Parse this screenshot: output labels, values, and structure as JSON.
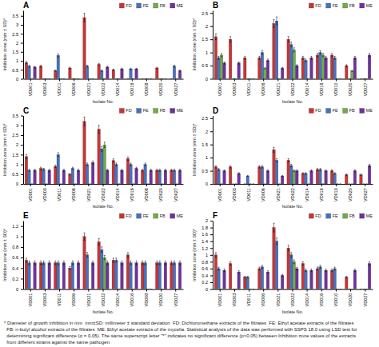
{
  "chart_data": [
    {
      "type": "bar",
      "title": "A",
      "xlabel": "Isolate No.",
      "ylabel": "Inhibition zone (mm ± SD)*",
      "categories": [
        "VD001",
        "VD003",
        "VD011",
        "VD006",
        "VD021",
        "VD022",
        "VD014",
        "VD016",
        "VD008",
        "VD020",
        "VD027"
      ],
      "series": [
        {
          "name": "FD",
          "color": "#cc3333",
          "values": [
            0.9,
            0.7,
            0.45,
            0.6,
            3.4,
            0.8,
            0.5,
            0,
            0,
            0.6,
            0
          ],
          "errors": [
            0.063,
            0.049,
            0.0315,
            0.042,
            0.238,
            0.056,
            0.035,
            0,
            0,
            0.042,
            0
          ]
        },
        {
          "name": "FE",
          "color": "#4472c4",
          "values": [
            0.7,
            0,
            1.3,
            0,
            0.7,
            0.45,
            0,
            0.55,
            0,
            0,
            0.7
          ],
          "errors": [
            0.049,
            0,
            0.091,
            0,
            0.049,
            0.0315,
            0,
            0.0385,
            0,
            0,
            0.049
          ]
        },
        {
          "name": "FB",
          "color": "#70ad47",
          "values": [
            0,
            0,
            0,
            0,
            0,
            0,
            0,
            0,
            0,
            0,
            0
          ],
          "errors": [
            0,
            0,
            0,
            0,
            0,
            0,
            0,
            0,
            0,
            0,
            0
          ]
        },
        {
          "name": "ME",
          "color": "#7030a0",
          "values": [
            0.65,
            0,
            0,
            0,
            0,
            0.65,
            0.55,
            0.55,
            0,
            0,
            0.45
          ],
          "errors": [
            0.0455,
            0,
            0,
            0,
            0,
            0.0455,
            0.0385,
            0.0385,
            0,
            0,
            0.0315
          ]
        }
      ],
      "ylim": [
        0,
        3.8
      ],
      "yticks": [
        0,
        0.5,
        1,
        1.5,
        2,
        2.5,
        3,
        3.5
      ],
      "grid": false,
      "legend": "upper right"
    },
    {
      "type": "bar",
      "title": "B",
      "xlabel": "Isolate No.",
      "ylabel": "Inhibition zone (mm ± SD)*",
      "categories": [
        "VD001",
        "VD003",
        "VD011",
        "VD006",
        "VD021",
        "VD022",
        "VD014",
        "VD016",
        "VD010",
        "VD020",
        "VD027"
      ],
      "series": [
        {
          "name": "FD",
          "color": "#cc3333",
          "values": [
            1.6,
            1.5,
            0.8,
            0.8,
            2.1,
            1.5,
            0.8,
            0.9,
            0.9,
            0.5,
            0
          ],
          "errors": [
            0.112,
            0.105,
            0.056,
            0.056,
            0.147,
            0.105,
            0.056,
            0.063,
            0.063,
            0.035,
            0
          ]
        },
        {
          "name": "FE",
          "color": "#4472c4",
          "values": [
            0.8,
            0,
            0,
            1,
            2.2,
            1.3,
            0.7,
            1,
            0.8,
            0,
            0
          ],
          "errors": [
            0.056,
            0,
            0,
            0.07,
            0.154,
            0.091,
            0.049,
            0.07,
            0.056,
            0,
            0
          ]
        },
        {
          "name": "FB",
          "color": "#70ad47",
          "values": [
            0.9,
            0,
            0,
            0.4,
            0,
            1.1,
            0,
            0.9,
            0,
            0.3,
            0
          ],
          "errors": [
            0.063,
            0,
            0,
            0.028,
            0,
            0.077,
            0,
            0.063,
            0,
            0.021,
            0
          ]
        },
        {
          "name": "ME",
          "color": "#7030a0",
          "values": [
            0.6,
            0.6,
            0,
            0.7,
            0.4,
            0.5,
            0.8,
            0.8,
            0,
            0.8,
            0.9
          ],
          "errors": [
            0.042,
            0.042,
            0,
            0.049,
            0.028,
            0.035,
            0.056,
            0.056,
            0,
            0.056,
            0.063
          ]
        }
      ],
      "ylim": [
        0,
        2.6
      ],
      "yticks": [
        0,
        0.5,
        1,
        1.5,
        2,
        2.5
      ],
      "grid": false,
      "legend": "upper right"
    },
    {
      "type": "bar",
      "title": "C",
      "xlabel": "Isolate No.",
      "ylabel": "Inhibition zone (mm ± SD)*",
      "categories": [
        "VD001",
        "VD003",
        "VD011",
        "VD006",
        "VD021",
        "VD022",
        "VD014",
        "VD016",
        "VD008",
        "VD020",
        "VD027"
      ],
      "series": [
        {
          "name": "FD",
          "color": "#cc3333",
          "values": [
            1.4,
            0.8,
            0.9,
            0.5,
            3.2,
            2.8,
            1.2,
            1.3,
            0.7,
            0.7,
            0.7
          ],
          "errors": [
            0.098,
            0.056,
            0.063,
            0.035,
            0.224,
            0.196,
            0.084,
            0.091,
            0.049,
            0.049,
            0.049
          ]
        },
        {
          "name": "FE",
          "color": "#4472c4",
          "values": [
            0.7,
            0.75,
            1.5,
            0.8,
            1,
            1.8,
            1,
            1,
            1,
            0.7,
            0.7
          ],
          "errors": [
            0.049,
            0.0525,
            0.105,
            0.056,
            0.07,
            0.126,
            0.07,
            0.07,
            0.07,
            0.049,
            0.049
          ]
        },
        {
          "name": "FB",
          "color": "#70ad47",
          "values": [
            0,
            0,
            0,
            0,
            0,
            2,
            0,
            0,
            0,
            0,
            0
          ],
          "errors": [
            0,
            0,
            0,
            0,
            0,
            0.14,
            0,
            0,
            0,
            0,
            0
          ]
        },
        {
          "name": "ME",
          "color": "#7030a0",
          "values": [
            0.7,
            0.7,
            0.7,
            0.7,
            1.1,
            0.7,
            0.7,
            0.8,
            0.7,
            0.7,
            0.7
          ],
          "errors": [
            0.049,
            0.049,
            0.049,
            0.049,
            0.077,
            0.049,
            0.049,
            0.056,
            0.049,
            0.049,
            0.049
          ]
        }
      ],
      "ylim": [
        0,
        3.5
      ],
      "yticks": [
        0,
        0.5,
        1,
        1.5,
        2,
        2.5,
        3,
        3.5
      ],
      "grid": false,
      "legend": "upper right"
    },
    {
      "type": "bar",
      "title": "D",
      "xlabel": "Isolate No.",
      "ylabel": "Inhibition zone (mm ± SD)*",
      "categories": [
        "VD001",
        "VD003",
        "VD011",
        "VD006",
        "VD021",
        "VD022",
        "VD014",
        "VD016",
        "VD010",
        "VD020",
        "VD027"
      ],
      "series": [
        {
          "name": "FD",
          "color": "#cc3333",
          "values": [
            0.65,
            0.65,
            0,
            0.65,
            1.3,
            0.9,
            0.4,
            0.55,
            0.5,
            0.35,
            0.35
          ],
          "errors": [
            0.0455,
            0.0455,
            0,
            0.0455,
            0.091,
            0.063,
            0.028,
            0.0385,
            0.035,
            0.0245,
            0.0245
          ]
        },
        {
          "name": "FE",
          "color": "#4472c4",
          "values": [
            0.55,
            0,
            0.3,
            0.65,
            0.9,
            0.7,
            0.4,
            0.55,
            0.4,
            0,
            0
          ],
          "errors": [
            0.0385,
            0,
            0.021,
            0.0455,
            0.063,
            0.049,
            0.028,
            0.0385,
            0.028,
            0,
            0
          ]
        },
        {
          "name": "FB",
          "color": "#70ad47",
          "values": [
            0,
            0,
            0,
            0,
            0,
            0.5,
            0,
            0,
            0,
            0,
            0
          ],
          "errors": [
            0,
            0,
            0,
            0,
            0,
            0.035,
            0,
            0,
            0,
            0,
            0
          ]
        },
        {
          "name": "ME",
          "color": "#7030a0",
          "values": [
            0.5,
            0.4,
            0,
            0.5,
            0.3,
            0.5,
            0.5,
            0.5,
            0,
            0.5,
            0.7
          ],
          "errors": [
            0.035,
            0.028,
            0,
            0.035,
            0.021,
            0.035,
            0.035,
            0.035,
            0,
            0.035,
            0.049
          ]
        }
      ],
      "ylim": [
        0,
        2.6
      ],
      "yticks": [
        0,
        0.5,
        1,
        1.5,
        2,
        2.5
      ],
      "grid": false,
      "legend": "upper right"
    },
    {
      "type": "bar",
      "title": "E",
      "xlabel": "Isolate No.",
      "ylabel": "Inhibition zone (mm ± SD)*",
      "categories": [
        "VD001",
        "VD003",
        "VD011",
        "VD006",
        "VD021",
        "VD022",
        "VD014",
        "VD016",
        "VD008",
        "VD020",
        "VD027"
      ],
      "series": [
        {
          "name": "FD",
          "color": "#cc3333",
          "values": [
            0.55,
            0.5,
            0.5,
            0.4,
            1,
            0.9,
            0.55,
            0.65,
            0.5,
            0.5,
            0.5
          ],
          "errors": [
            0.0385,
            0.035,
            0.035,
            0.028,
            0.07,
            0.063,
            0.0385,
            0.0455,
            0.035,
            0.035,
            0.035
          ]
        },
        {
          "name": "FE",
          "color": "#4472c4",
          "values": [
            0.5,
            0.5,
            0.5,
            0.5,
            0.65,
            0.75,
            0.55,
            0.5,
            0.5,
            0.5,
            0.5
          ],
          "errors": [
            0.035,
            0.035,
            0.035,
            0.035,
            0.0455,
            0.0525,
            0.0385,
            0.035,
            0.035,
            0.035,
            0.035
          ]
        },
        {
          "name": "FB",
          "color": "#70ad47",
          "values": [
            0,
            0,
            0,
            0,
            0,
            0.6,
            0,
            0,
            0,
            0,
            0
          ],
          "errors": [
            0,
            0,
            0,
            0,
            0,
            0.042,
            0,
            0,
            0,
            0,
            0
          ]
        },
        {
          "name": "ME",
          "color": "#7030a0",
          "values": [
            0.5,
            0.5,
            0.5,
            0.5,
            0.5,
            0.5,
            0.5,
            0.5,
            0,
            0.5,
            0.5
          ],
          "errors": [
            0.035,
            0.035,
            0.035,
            0.035,
            0.035,
            0.035,
            0.035,
            0.035,
            0,
            0.035,
            0.035
          ]
        }
      ],
      "ylim": [
        0,
        1.3
      ],
      "yticks": [
        0,
        0.2,
        0.4,
        0.6,
        0.8,
        1,
        1.2
      ],
      "grid": false,
      "legend": "upper right"
    },
    {
      "type": "bar",
      "title": "F",
      "xlabel": "Isolate No.",
      "ylabel": "Inhibition zone (mm ± SD)*",
      "categories": [
        "VD001",
        "VD003",
        "VD011",
        "VD006",
        "VD021",
        "VD022",
        "VD014",
        "VD016",
        "VD010",
        "VD020",
        "VD027"
      ],
      "series": [
        {
          "name": "FD",
          "color": "#cc3333",
          "values": [
            1,
            0.75,
            0.35,
            0.6,
            1.8,
            1.2,
            0.75,
            0.6,
            0.55,
            0.35,
            0
          ],
          "errors": [
            0.07,
            0.0525,
            0.0245,
            0.042,
            0.126,
            0.084,
            0.0525,
            0.042,
            0.0385,
            0.0245,
            0
          ]
        },
        {
          "name": "FE",
          "color": "#4472c4",
          "values": [
            0.6,
            0,
            0.35,
            0.65,
            1.4,
            1,
            0.55,
            0.65,
            0.6,
            0,
            0
          ],
          "errors": [
            0.042,
            0,
            0.0245,
            0.0455,
            0.098,
            0.07,
            0.0385,
            0.0455,
            0.042,
            0,
            0
          ]
        },
        {
          "name": "FB",
          "color": "#70ad47",
          "values": [
            0,
            0,
            0,
            0,
            0,
            0.8,
            0,
            0,
            0,
            0,
            0
          ],
          "errors": [
            0,
            0,
            0,
            0,
            0,
            0.056,
            0,
            0,
            0,
            0,
            0
          ]
        },
        {
          "name": "ME",
          "color": "#7030a0",
          "values": [
            0.55,
            0.5,
            0,
            0.5,
            0.4,
            0.6,
            0.55,
            0.55,
            0,
            0.55,
            0.75
          ],
          "errors": [
            0.0385,
            0.035,
            0,
            0.035,
            0.028,
            0.042,
            0.0385,
            0.0385,
            0,
            0.0385,
            0.0525
          ]
        }
      ],
      "ylim": [
        0,
        2
      ],
      "yticks": [
        0,
        0.2,
        0.4,
        0.6,
        0.8,
        1,
        1.2,
        1.4,
        1.6,
        1.8,
        2
      ],
      "grid": false,
      "legend": "upper right",
      "annotations": [
        "* Diameter of growth inhibition in mm  mm±SD: millimeter ± standard deviation  FD: Dichloromethane extracts of the filtrates  FE: Ethyl acetate extracts of the filtrates",
        "  FB: n-butyl alcohol extracts of the filtrates  ME: Ethyl acetate extracts of the mycelia. Statistical analysis of the data was performed with SSPS 18.0 using LSD test for",
        "  determining significant difference (α = 0.05). The same superscript letter \"*\" indicates no significant difference (p>0.05) between Inhibition zone values of the extracts",
        "  from different strains against the same pathogen"
      ]
    }
  ]
}
